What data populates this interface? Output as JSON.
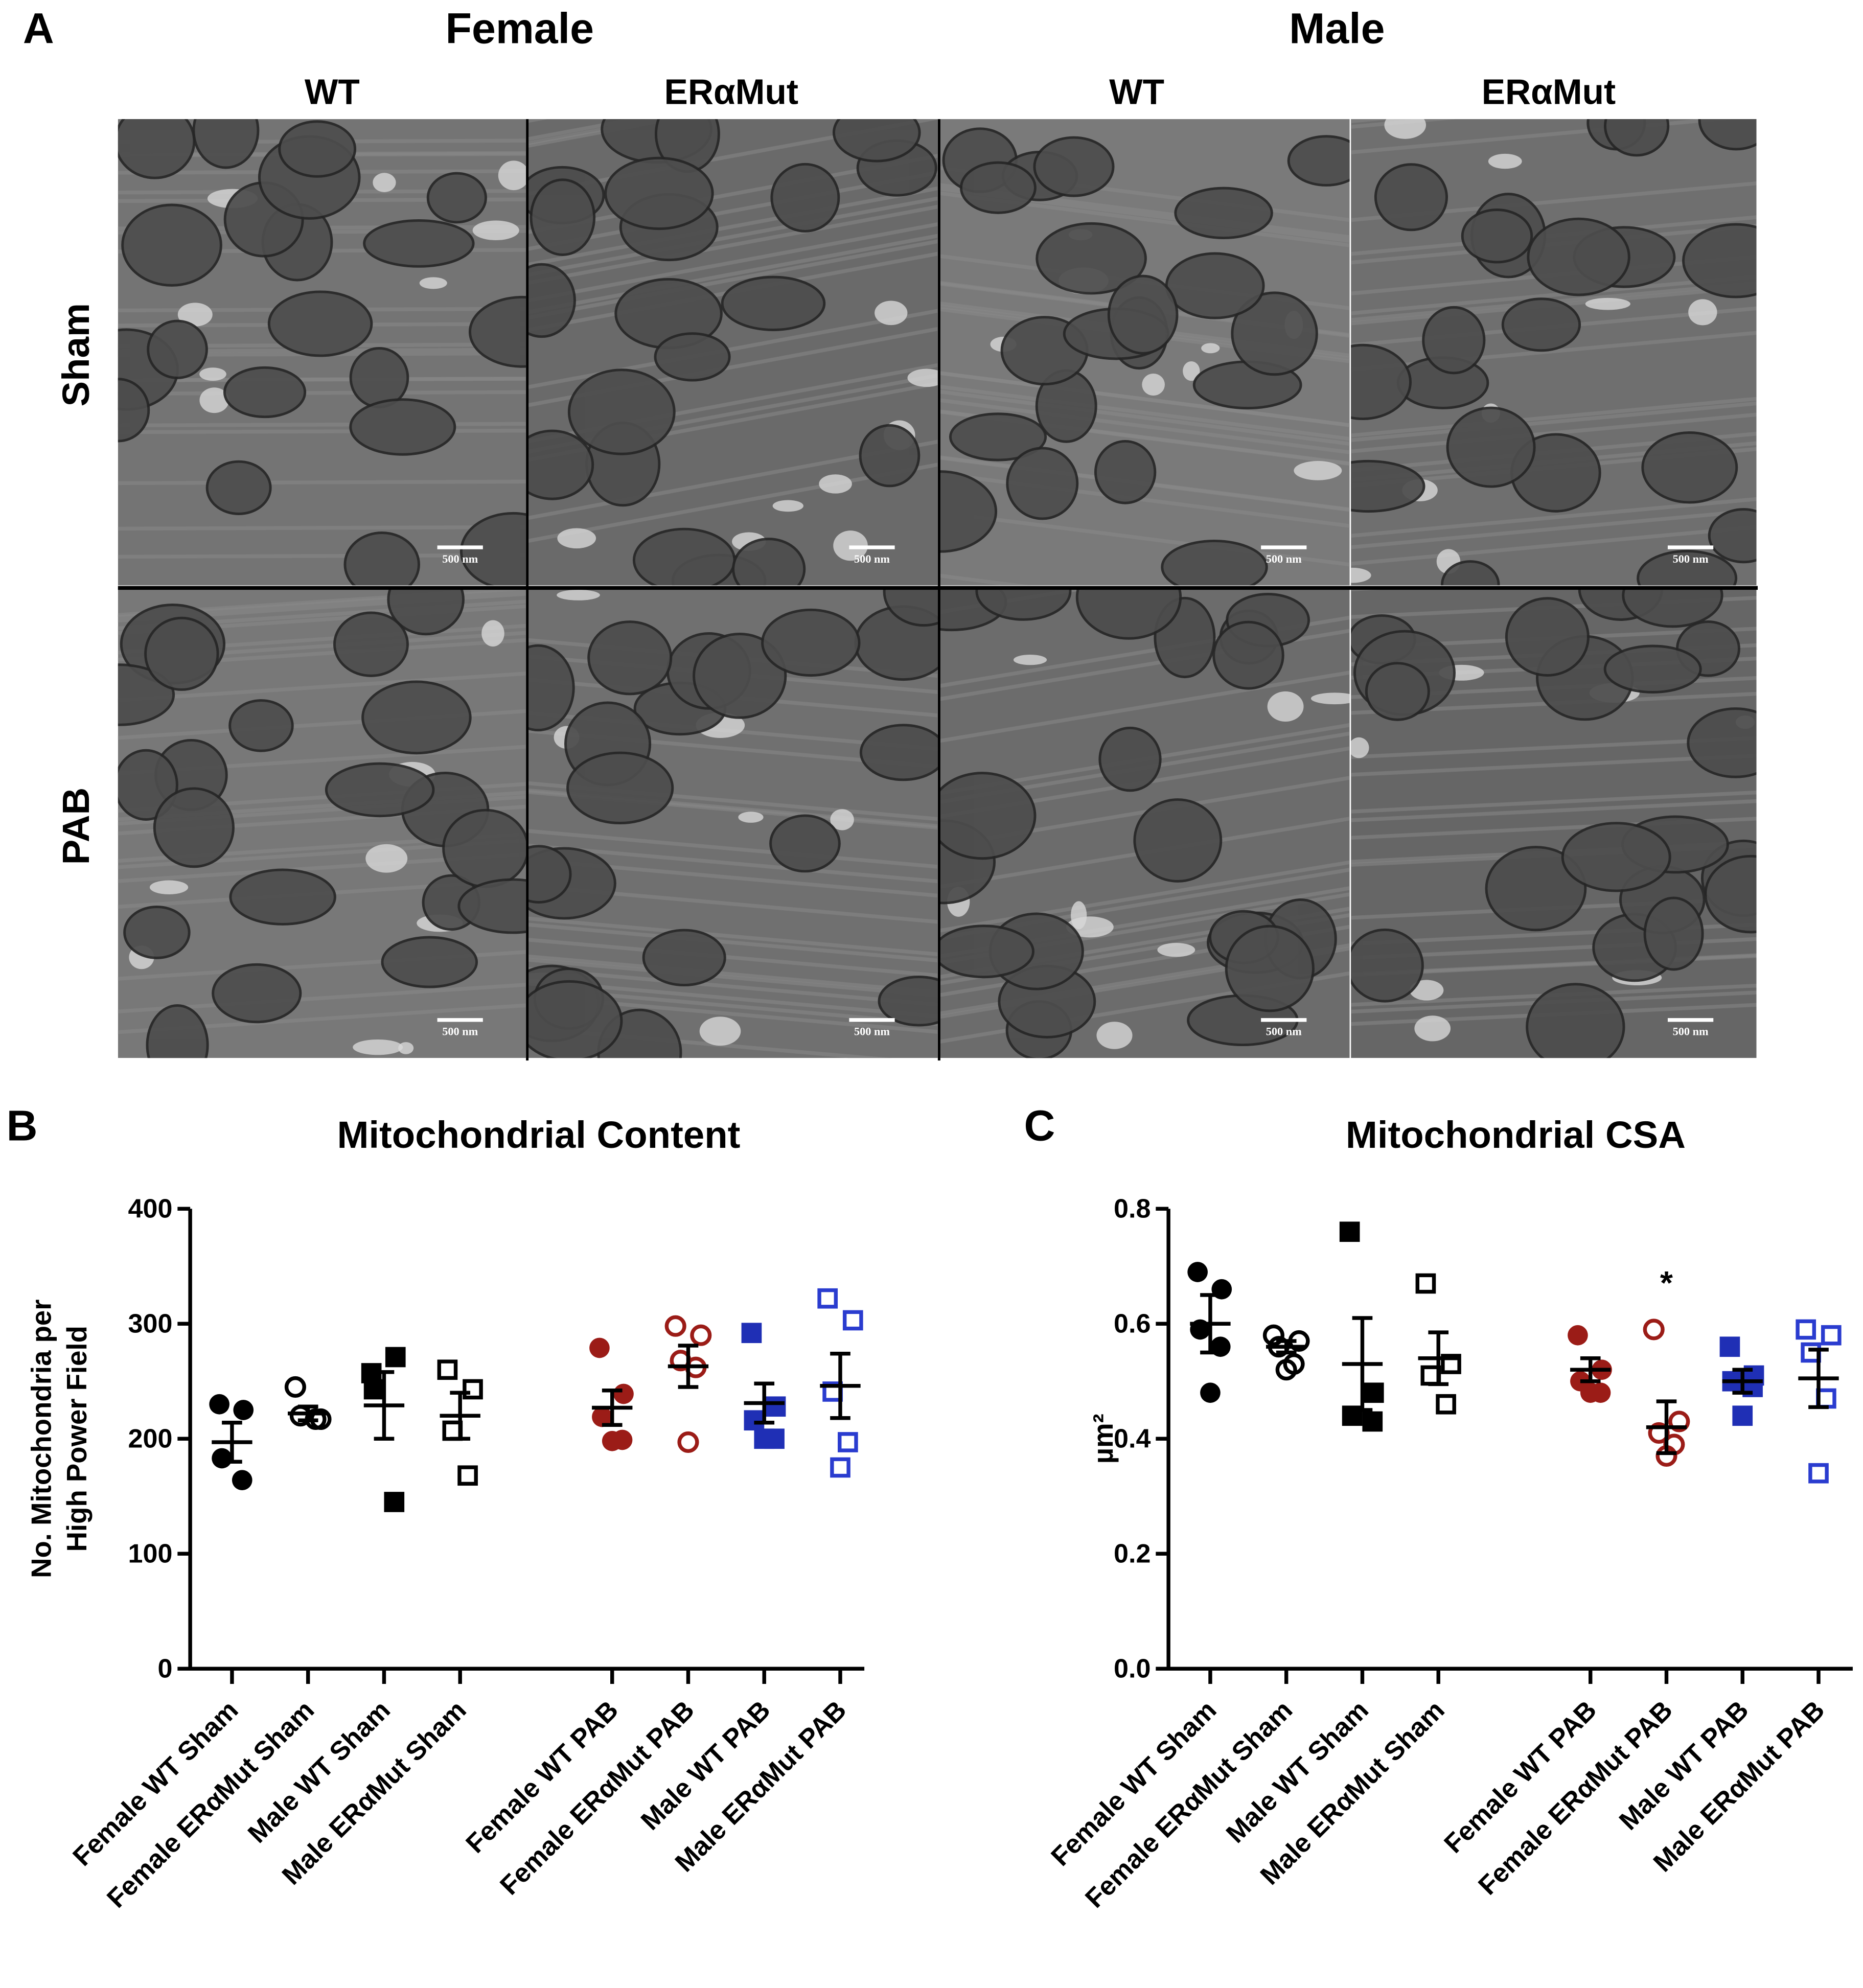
{
  "panel_a": {
    "label": "A",
    "sex_headers": [
      "Female",
      "Male"
    ],
    "genotype_headers": [
      "WT",
      "ERαMut",
      "WT",
      "ERαMut"
    ],
    "row_labels": [
      "Sham",
      "PAB"
    ],
    "scale_bar": "500 nm"
  },
  "chart_data": [
    {
      "type": "dot",
      "panel": "B",
      "title": "Mitochondrial Content",
      "y_label": [
        "No. Mitochondria per",
        "High Power Field"
      ],
      "categories": [
        "Female WT Sham",
        "Female ERαMut Sham",
        "Male WT Sham",
        "Male ERαMut Sham",
        "Female WT PAB",
        "Female ERαMut PAB",
        "Male WT PAB",
        "Male ERαMut PAB"
      ],
      "values": [
        [
          230,
          225,
          183,
          164
        ],
        [
          245,
          217,
          220,
          217
        ],
        [
          257,
          271,
          243,
          145
        ],
        [
          260,
          243,
          207,
          168
        ],
        [
          279,
          239,
          219,
          199,
          198
        ],
        [
          298,
          290,
          268,
          262,
          197
        ],
        [
          292,
          228,
          216,
          200,
          200
        ],
        [
          322,
          303,
          241,
          197,
          175
        ]
      ],
      "means": [
        197,
        222,
        229,
        220,
        227,
        263,
        231,
        246
      ],
      "sems": [
        17,
        6,
        29,
        20,
        15,
        18,
        17,
        28
      ],
      "markers": [
        {
          "shape": "circle",
          "filled": true,
          "color": "#000000"
        },
        {
          "shape": "circle",
          "filled": false,
          "color": "#000000"
        },
        {
          "shape": "square",
          "filled": true,
          "color": "#000000"
        },
        {
          "shape": "square",
          "filled": false,
          "color": "#000000"
        },
        {
          "shape": "circle",
          "filled": true,
          "color": "#9b1c17"
        },
        {
          "shape": "circle",
          "filled": false,
          "color": "#9b1c17"
        },
        {
          "shape": "square",
          "filled": true,
          "color": "#1f2fb5"
        },
        {
          "shape": "square",
          "filled": false,
          "color": "#2a3ccf"
        }
      ],
      "significance": [
        null,
        null,
        null,
        null,
        null,
        null,
        null,
        null
      ],
      "ylim": [
        0,
        400
      ],
      "yticks": [
        0,
        100,
        200,
        300,
        400
      ]
    },
    {
      "type": "dot",
      "panel": "C",
      "title": "Mitochondrial CSA",
      "y_label": [
        "µm²"
      ],
      "categories": [
        "Female WT Sham",
        "Female ERαMut Sham",
        "Male WT Sham",
        "Male ERαMut Sham",
        "Female WT PAB",
        "Female ERαMut PAB",
        "Male WT PAB",
        "Male ERαMut PAB"
      ],
      "values": [
        [
          0.69,
          0.66,
          0.59,
          0.56,
          0.48
        ],
        [
          0.58,
          0.57,
          0.56,
          0.53,
          0.52
        ],
        [
          0.76,
          0.48,
          0.44,
          0.43
        ],
        [
          0.67,
          0.53,
          0.51,
          0.46
        ],
        [
          0.58,
          0.52,
          0.5,
          0.48,
          0.48
        ],
        [
          0.59,
          0.43,
          0.41,
          0.39,
          0.37
        ],
        [
          0.56,
          0.51,
          0.5,
          0.49,
          0.44
        ],
        [
          0.59,
          0.58,
          0.55,
          0.47,
          0.34
        ]
      ],
      "means": [
        0.6,
        0.56,
        0.53,
        0.54,
        0.52,
        0.42,
        0.5,
        0.505
      ],
      "sems": [
        0.05,
        0.01,
        0.08,
        0.045,
        0.02,
        0.045,
        0.02,
        0.05
      ],
      "markers": [
        {
          "shape": "circle",
          "filled": true,
          "color": "#000000"
        },
        {
          "shape": "circle",
          "filled": false,
          "color": "#000000"
        },
        {
          "shape": "square",
          "filled": true,
          "color": "#000000"
        },
        {
          "shape": "square",
          "filled": false,
          "color": "#000000"
        },
        {
          "shape": "circle",
          "filled": true,
          "color": "#9b1c17"
        },
        {
          "shape": "circle",
          "filled": false,
          "color": "#9b1c17"
        },
        {
          "shape": "square",
          "filled": true,
          "color": "#1f2fb5"
        },
        {
          "shape": "square",
          "filled": false,
          "color": "#2a3ccf"
        }
      ],
      "significance": [
        null,
        null,
        null,
        null,
        null,
        "*",
        null,
        null
      ],
      "ylim": [
        0,
        0.8
      ],
      "yticks": [
        {
          "value": 0,
          "label": "0.0"
        },
        0.2,
        0.4,
        0.6,
        0.8
      ]
    }
  ]
}
